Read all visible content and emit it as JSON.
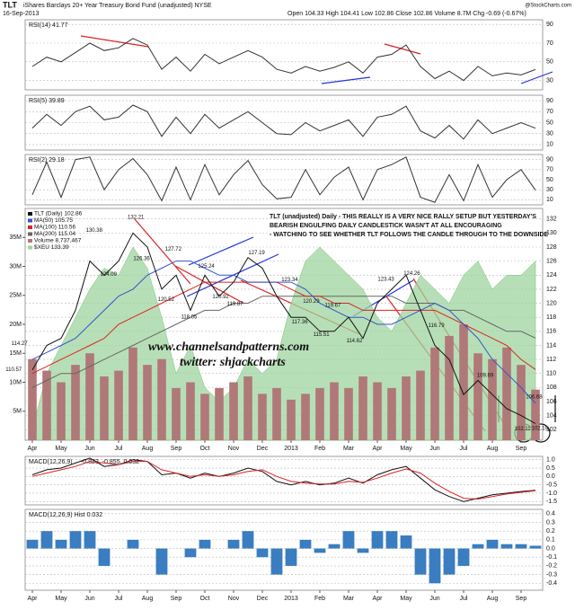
{
  "header": {
    "symbol": "TLT",
    "name": "iShares Barclays 20+ Year Treasury Bond Fund (unadjusted) NYSE",
    "date": "16-Sep-2013",
    "quote": "Open 104.33   High 104.41   Low 102.86   Close 102.86   Volume 8.7M   Chg -0.69 (-0.67%)",
    "credit": "@StockCharts.com"
  },
  "chart_data": [
    {
      "type": "line",
      "title": "RSI(14) 41.77",
      "color": "#333333",
      "ylim": [
        20,
        95
      ],
      "yticks": [
        30,
        50,
        70,
        90
      ],
      "grid": true,
      "values": [
        45,
        55,
        50,
        60,
        70,
        62,
        65,
        75,
        68,
        42,
        55,
        40,
        58,
        48,
        55,
        62,
        55,
        42,
        38,
        45,
        40,
        44,
        50,
        38,
        55,
        58,
        68,
        45,
        32,
        40,
        30,
        45,
        35,
        38,
        36,
        41.77
      ]
    },
    {
      "type": "line",
      "title": "RSI(5) 39.89",
      "color": "#333333",
      "ylim": [
        0,
        100
      ],
      "yticks": [
        10,
        30,
        50,
        70,
        90
      ],
      "grid": true,
      "values": [
        40,
        65,
        45,
        70,
        80,
        55,
        60,
        82,
        70,
        25,
        60,
        30,
        65,
        40,
        55,
        70,
        50,
        30,
        28,
        50,
        35,
        45,
        55,
        25,
        60,
        65,
        80,
        35,
        22,
        45,
        20,
        55,
        30,
        40,
        50,
        39.89
      ]
    },
    {
      "type": "line",
      "title": "RSI(2) 29.18",
      "color": "#333333",
      "ylim": [
        0,
        100
      ],
      "yticks": [
        10,
        30,
        50,
        70,
        90
      ],
      "grid": true,
      "values": [
        20,
        85,
        15,
        90,
        95,
        30,
        70,
        92,
        60,
        8,
        75,
        10,
        80,
        20,
        60,
        88,
        40,
        12,
        15,
        70,
        20,
        55,
        75,
        10,
        70,
        80,
        95,
        15,
        5,
        60,
        8,
        80,
        15,
        50,
        70,
        29.18
      ]
    },
    {
      "type": "line",
      "ylim": [
        100.5,
        133.5
      ],
      "yticks": [
        102,
        104,
        106,
        108,
        110,
        112,
        114,
        116,
        118,
        120,
        122,
        124,
        126,
        128,
        130,
        132
      ],
      "grid": true,
      "y2lim": [
        0,
        40000000
      ],
      "y2ticks": [
        {
          "value": 5000000,
          "label": "5M"
        },
        {
          "value": 10000000,
          "label": "10M"
        },
        {
          "value": 15000000,
          "label": "15M"
        },
        {
          "value": 20000000,
          "label": "20M"
        },
        {
          "value": 25000000,
          "label": "25M"
        },
        {
          "value": 30000000,
          "label": "30M"
        },
        {
          "value": 35000000,
          "label": "35M"
        }
      ],
      "categories": [
        "Apr",
        null,
        "May",
        null,
        "Jun",
        null,
        "Jul",
        null,
        "Aug",
        null,
        "Sep",
        null,
        "Oct",
        null,
        "Nov",
        null,
        "Dec",
        null,
        "2013",
        null,
        "Feb",
        null,
        "Mar",
        null,
        "Apr",
        null,
        "May",
        null,
        "Jun",
        null,
        "Jul",
        null,
        "Aug",
        null,
        "Sep",
        null
      ],
      "series": [
        {
          "name": "$XEU 133.39",
          "kind": "area",
          "color": "#9fd49f",
          "values": [
            102,
            110,
            114,
            118,
            122,
            125,
            124,
            128,
            125,
            118,
            110,
            114,
            108,
            106,
            108,
            112,
            110,
            112,
            120,
            126,
            128,
            126,
            124,
            122,
            118,
            116,
            120,
            124,
            122,
            120,
            124,
            126,
            122,
            124,
            124,
            126
          ]
        },
        {
          "name": "Volume 8,737,467",
          "kind": "bar",
          "axis": "y2",
          "color": "#b07878",
          "values": [
            14000000,
            12000000,
            10000000,
            13000000,
            15000000,
            11000000,
            12000000,
            16000000,
            13000000,
            14000000,
            9000000,
            10000000,
            8000000,
            9000000,
            10000000,
            11000000,
            8000000,
            9000000,
            7000000,
            8000000,
            9000000,
            10000000,
            9000000,
            11000000,
            10000000,
            9000000,
            11000000,
            12000000,
            16000000,
            18000000,
            20000000,
            15000000,
            14000000,
            16000000,
            13000000,
            8737467
          ]
        },
        {
          "name": "MA(200) 115.04",
          "color": "#666666",
          "values": [
            108,
            109,
            110,
            110,
            111,
            112,
            113,
            114,
            115,
            116,
            117,
            118,
            119,
            119,
            120,
            120,
            121,
            121,
            121,
            121,
            121,
            121,
            121,
            121,
            121,
            121,
            120,
            120,
            120,
            119,
            119,
            118,
            117,
            116,
            116,
            115.04
          ]
        },
        {
          "name": "MA(100) 110.56",
          "color": "#dd2222",
          "values": [
            110,
            111,
            112,
            113,
            114,
            115,
            117,
            118,
            119,
            120,
            121,
            122,
            123,
            123,
            123,
            123,
            123,
            123,
            122,
            121,
            121,
            120,
            120,
            119,
            119,
            119,
            119,
            119,
            119,
            118,
            117,
            116,
            115,
            114,
            112,
            110.56
          ]
        },
        {
          "name": "MA(50) 105.75",
          "color": "#3355cc",
          "values": [
            112,
            113,
            114,
            115,
            117,
            119,
            121,
            122,
            124,
            125,
            126,
            126,
            125,
            124,
            124,
            123,
            123,
            123,
            123,
            122,
            120,
            119,
            118,
            118,
            117,
            117,
            118,
            119,
            120,
            119,
            117,
            115,
            112,
            110,
            108,
            105.75
          ]
        },
        {
          "name": "TLT (Daily) 102.86",
          "color": "#111111",
          "values": [
            110.5,
            114,
            115,
            119,
            126,
            124,
            126,
            130,
            128,
            122,
            124,
            119,
            124,
            121,
            123,
            126.5,
            125,
            121,
            118,
            118,
            116,
            116,
            118,
            115,
            120,
            122,
            124,
            119,
            114,
            112,
            107,
            109,
            107,
            105,
            104,
            102.86
          ]
        }
      ],
      "price_labels": [
        {
          "x": -1.3,
          "y": 110.57
        },
        {
          "x": -0.9,
          "y": 114.27
        },
        {
          "x": 4.3,
          "y": 130.38
        },
        {
          "x": 5.3,
          "y": 124.09
        },
        {
          "x": 7.2,
          "y": 132.21
        },
        {
          "x": 7.6,
          "y": 126.36
        },
        {
          "x": 9.8,
          "y": 127.72
        },
        {
          "x": 9.3,
          "y": 120.52
        },
        {
          "x": 10.9,
          "y": 118.05
        },
        {
          "x": 12.1,
          "y": 125.24
        },
        {
          "x": 13.1,
          "y": 120.92
        },
        {
          "x": 14.1,
          "y": 119.87
        },
        {
          "x": 15.6,
          "y": 127.19
        },
        {
          "x": 17.9,
          "y": 123.34
        },
        {
          "x": 18.6,
          "y": 117.36
        },
        {
          "x": 19.4,
          "y": 120.29
        },
        {
          "x": 20.1,
          "y": 115.51
        },
        {
          "x": 20.9,
          "y": 119.67
        },
        {
          "x": 22.4,
          "y": 114.62
        },
        {
          "x": 24.6,
          "y": 123.43
        },
        {
          "x": 26.4,
          "y": 124.26
        },
        {
          "x": 28.1,
          "y": 116.79
        },
        {
          "x": 31.5,
          "y": 109.69
        },
        {
          "x": 34.9,
          "y": 106.68
        },
        {
          "x": 34.1,
          "y": 102.11
        },
        {
          "x": 35.3,
          "y": 102.19
        }
      ],
      "notes": [
        "TLT (unadjusted) Daily - THIS REALLY IS A VERY NICE RALLY SETUP BUT YESTERDAY'S",
        "BEARISH ENGULFING DAILY CANDLESTICK WASN'T AT ALL ENCOURAGING",
        "- WATCHING TO SEE WHETHER TLT FOLLOWS THE CANDLE THROUGH TO THE DOWNSIDE",
        "www.channelsandpatterns.com",
        "twitter: shjackcharts"
      ]
    },
    {
      "type": "line",
      "title": "MACD(12,26,9)",
      "readout": "-0.823, -0.855, 0.032",
      "ylim": [
        -1.7,
        1.2
      ],
      "yticks": [
        {
          "value": 1,
          "label": "1.0"
        },
        0.5,
        {
          "value": 0,
          "label": "0.0"
        },
        -0.5,
        {
          "value": -1,
          "label": "-1.0"
        },
        -1.5
      ],
      "grid": true,
      "series": [
        {
          "name": "MACD",
          "color": "#111111",
          "values": [
            0.1,
            0.4,
            0.5,
            0.8,
            1.1,
            0.6,
            0.7,
            1.0,
            0.9,
            0.1,
            0.2,
            -0.1,
            0.2,
            0.0,
            0.2,
            0.5,
            0.3,
            -0.3,
            -0.5,
            -0.3,
            -0.5,
            -0.4,
            -0.1,
            -0.4,
            0.1,
            0.4,
            0.6,
            -0.1,
            -0.8,
            -1.2,
            -1.5,
            -1.3,
            -1.1,
            -1.0,
            -0.9,
            -0.823
          ]
        },
        {
          "name": "Signal",
          "color": "#dd2222",
          "values": [
            0.0,
            0.2,
            0.4,
            0.6,
            0.9,
            0.8,
            0.7,
            0.9,
            0.9,
            0.4,
            0.2,
            0.0,
            0.1,
            0.0,
            0.1,
            0.3,
            0.4,
            0.0,
            -0.3,
            -0.4,
            -0.45,
            -0.45,
            -0.3,
            -0.35,
            -0.1,
            0.2,
            0.45,
            0.2,
            -0.4,
            -0.9,
            -1.3,
            -1.35,
            -1.2,
            -1.05,
            -0.95,
            -0.855
          ]
        }
      ]
    },
    {
      "type": "bar",
      "title": "MACD(12,26,9) Hist 0.032",
      "color": "#3a7dc0",
      "ylim": [
        -0.48,
        0.45
      ],
      "yticks": [
        0.4,
        0.3,
        0.2,
        0.1,
        {
          "value": 0,
          "label": "0.0"
        },
        -0.1,
        -0.2,
        -0.3,
        -0.4
      ],
      "grid": true,
      "categories": [
        "Apr",
        null,
        "May",
        null,
        "Jun",
        null,
        "Jul",
        null,
        "Aug",
        null,
        "Sep",
        null,
        "Oct",
        null,
        "Nov",
        null,
        "Dec",
        null,
        "2013",
        null,
        "Feb",
        null,
        "Mar",
        null,
        "Apr",
        null,
        "May",
        null,
        "Jun",
        null,
        "Jul",
        null,
        "Aug",
        null,
        "Sep",
        null
      ],
      "values": [
        0.1,
        0.2,
        0.1,
        0.2,
        0.2,
        -0.2,
        0.0,
        0.1,
        0.0,
        -0.3,
        0.0,
        -0.1,
        0.1,
        0.0,
        0.1,
        0.2,
        -0.1,
        -0.3,
        -0.2,
        0.1,
        -0.05,
        0.05,
        0.2,
        -0.05,
        0.2,
        0.2,
        0.15,
        -0.3,
        -0.4,
        -0.3,
        -0.2,
        0.05,
        0.1,
        0.05,
        0.05,
        0.032
      ]
    }
  ]
}
